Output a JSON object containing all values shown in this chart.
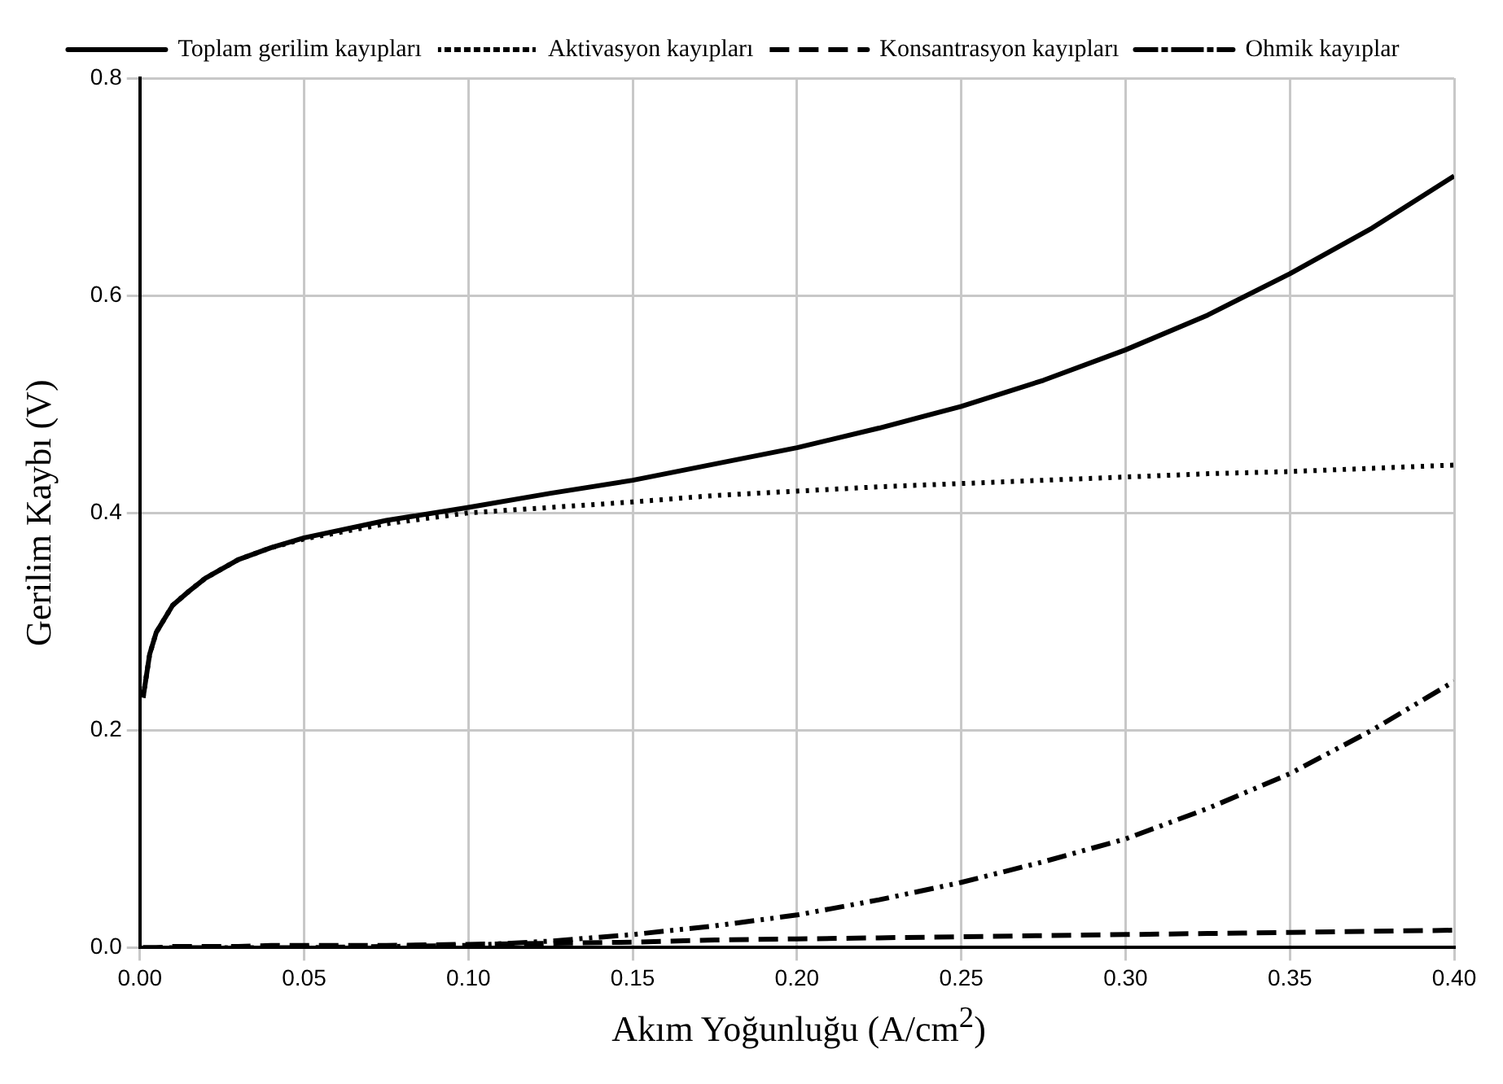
{
  "chart_data": {
    "type": "line",
    "xlabel": "Akım Yoğunluğu (A/cm$^{2}$)",
    "ylabel": "Gerilim Kaybı (V)",
    "xlim": [
      0,
      0.4
    ],
    "ylim": [
      0,
      0.8
    ],
    "xticks": [
      {
        "value": 0,
        "label": "0.00"
      },
      {
        "value": 0.05,
        "label": "0.05"
      },
      {
        "value": 0.1,
        "label": "0.10"
      },
      {
        "value": 0.15,
        "label": "0.15"
      },
      {
        "value": 0.2,
        "label": "0.20"
      },
      {
        "value": 0.25,
        "label": "0.25"
      },
      {
        "value": 0.3,
        "label": "0.30"
      },
      {
        "value": 0.35,
        "label": "0.35"
      },
      {
        "value": 0.4,
        "label": "0.40"
      }
    ],
    "yticks": [
      {
        "value": 0,
        "label": "0.0"
      },
      {
        "value": 0.2,
        "label": "0.2"
      },
      {
        "value": 0.4,
        "label": "0.4"
      },
      {
        "value": 0.6,
        "label": "0.6"
      },
      {
        "value": 0.8,
        "label": "0.8"
      }
    ],
    "grid": true,
    "legend": "top",
    "marker": "none",
    "x": [
      0.001,
      0.003,
      0.005,
      0.01,
      0.015,
      0.02,
      0.03,
      0.04,
      0.05,
      0.075,
      0.1,
      0.125,
      0.15,
      0.175,
      0.2,
      0.225,
      0.25,
      0.275,
      0.3,
      0.325,
      0.35,
      0.375,
      0.4
    ],
    "series": [
      {
        "name": "Toplam gerilim kayıpları",
        "color": "#000000",
        "line_style": "solid",
        "values": [
          0.23,
          0.27,
          0.29,
          0.315,
          0.328,
          0.34,
          0.357,
          0.368,
          0.377,
          0.393,
          0.405,
          0.418,
          0.43,
          0.445,
          0.46,
          0.478,
          0.498,
          0.522,
          0.55,
          0.582,
          0.62,
          0.662,
          0.71
        ]
      },
      {
        "name": "Aktivasyon kayıpları",
        "color": "#000000",
        "line_style": "dotted",
        "values": [
          0.23,
          0.27,
          0.29,
          0.315,
          0.328,
          0.34,
          0.357,
          0.368,
          0.376,
          0.39,
          0.4,
          0.405,
          0.41,
          0.416,
          0.42,
          0.424,
          0.427,
          0.43,
          0.433,
          0.436,
          0.438,
          0.441,
          0.444
        ]
      },
      {
        "name": "Konsantrasyon kayıpları",
        "color": "#000000",
        "line_style": "dashed",
        "values": [
          0,
          0,
          0,
          0.001,
          0.001,
          0.001,
          0.001,
          0.002,
          0.002,
          0.002,
          0.003,
          0.004,
          0.005,
          0.007,
          0.008,
          0.009,
          0.01,
          0.011,
          0.012,
          0.013,
          0.014,
          0.015,
          0.016
        ]
      },
      {
        "name": "Ohmik kayıplar",
        "color": "#000000",
        "line_style": "dashdot",
        "values": [
          0,
          0,
          0,
          0,
          0,
          0,
          0,
          0,
          0,
          0.001,
          0.002,
          0.006,
          0.012,
          0.02,
          0.03,
          0.044,
          0.06,
          0.079,
          0.1,
          0.128,
          0.16,
          0.2,
          0.245
        ]
      }
    ]
  }
}
